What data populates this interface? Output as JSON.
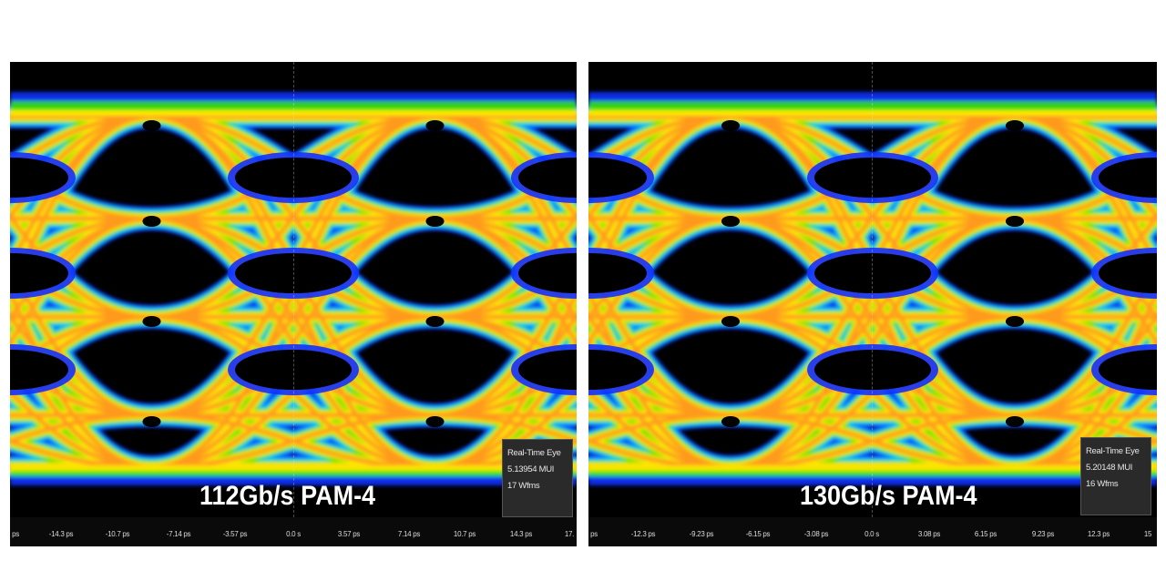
{
  "colors": {
    "background": "#000000",
    "outer_blue": "#1330ff",
    "cyan": "#00c8ff",
    "green": "#38e000",
    "yellow": "#ffee00",
    "orange": "#ff9a1e",
    "red_core": "#ff3a14"
  },
  "panels": [
    {
      "caption": "112Gb/s PAM-4",
      "info": {
        "title": "Real-Time Eye",
        "ui": "5.13954 MUI",
        "wfms": "17 Wfms"
      },
      "ticks": [
        "ps",
        "-14.3 ps",
        "-10.7 ps",
        "-7.14 ps",
        "-3.57 ps",
        "0.0 s",
        "3.57 ps",
        "7.14 ps",
        "10.7 ps",
        "14.3 ps",
        "17."
      ]
    },
    {
      "caption": "130Gb/s PAM-4",
      "info": {
        "title": "Real-Time Eye",
        "ui": "5.20148 MUI",
        "wfms": "16 Wfms"
      },
      "ticks": [
        "ps",
        "-12.3 ps",
        "-9.23 ps",
        "-6.15 ps",
        "-3.08 ps",
        "0.0 s",
        "3.08 ps",
        "6.15 ps",
        "9.23 ps",
        "12.3 ps",
        "15"
      ]
    }
  ]
}
